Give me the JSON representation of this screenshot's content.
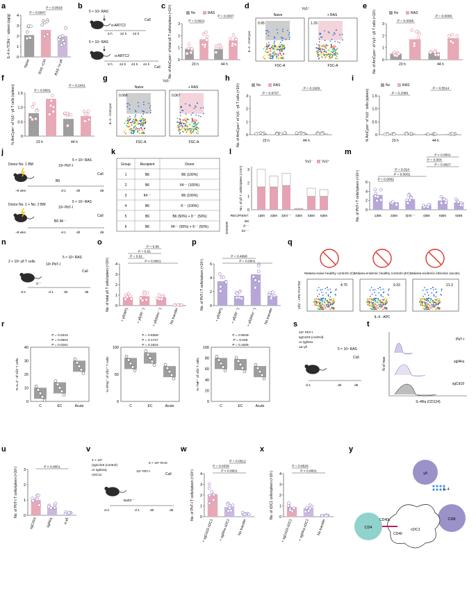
{
  "panels": {
    "a": {
      "label": "a",
      "ylabel": "IL-4 in TCRα⁻⁻ spleen (pg/g)",
      "yticks": [
        "0",
        "1",
        "2",
        "3",
        "4"
      ],
      "categories": [
        "Naive",
        "RAS +Ctrl",
        "RAS +α-γδ"
      ],
      "pvals": [
        "P = 0.0047",
        "P = 0.0018"
      ],
      "colors": [
        "#9e9e9e",
        "#e8a9b6",
        "#cbb9dd"
      ]
    },
    "b": {
      "label": "b",
      "ras": "5 × 10⁴ RAS",
      "artc": "α-ARTC2",
      "cull": "Cull",
      "times1": [
        "8 h",
        "22 h",
        "23 h"
      ],
      "times2": [
        "8 h",
        "24 h",
        "43 h",
        "44 h"
      ]
    },
    "c": {
      "label": "c",
      "ylabel": "No. of AmCyan⁺ of total γδ T cells/spleen (×10³)",
      "yticks": [
        "0",
        "1",
        "2",
        "3"
      ],
      "groups": [
        "23 h",
        "44 h"
      ],
      "pvals": [
        "P = 0.0021",
        "P = 0.0037"
      ],
      "legend": [
        "Nv",
        "RAS"
      ]
    },
    "d": {
      "label": "d",
      "title": "Vγ1⁺",
      "sub": [
        "Naive",
        "+ RAS"
      ],
      "gates": [
        "0.95",
        "1.29"
      ],
      "ylabel": "IL-4 - AmCyan",
      "xlabel": "FSC-A"
    },
    "e": {
      "label": "e",
      "ylabel": "No. of AmCyan⁺ of Vγ1⁺ γδ T cells (×10³)",
      "yticks": [
        "0",
        "1",
        "2",
        "3"
      ],
      "groups": [
        "23 h",
        "44 h"
      ],
      "pvals": [
        "P = 0.0006",
        "P = 0.0006"
      ],
      "legend": [
        "Nv",
        "RAS"
      ]
    },
    "f": {
      "label": "f",
      "ylabel": "% AmCyan⁺ of Vγ1⁺ γδ T cells (spleen)",
      "yticks": [
        "0",
        "0.5",
        "1.0",
        "1.5"
      ],
      "groups": [
        "23 h",
        "44 h"
      ],
      "pvals": [
        "P = 0.0001",
        "P = 0.2431"
      ]
    },
    "g": {
      "label": "g",
      "title": "Vγ1⁻",
      "sub": [
        "Naive",
        "+ RAS"
      ],
      "gates": [
        "0.066",
        "0.067"
      ],
      "ylabel": "IL-4 - AmCyan",
      "xlabel": "FSC-A"
    },
    "h": {
      "label": "h",
      "ylabel": "No. of AmCyan⁺ of Vγ1⁻ γδ T cells (×10³)",
      "yticks": [
        "0",
        "1",
        "2",
        "3"
      ],
      "groups": [
        "23 h",
        "44 h"
      ],
      "pvals": [
        "P = 0.9737",
        "P = 0.1929"
      ],
      "legend": [
        "Nv",
        "RAS"
      ]
    },
    "i": {
      "label": "i",
      "ylabel": "% AmCyan⁺ of Vγ1⁻ cells (spleen)",
      "yticks": [
        "0",
        "0.5",
        "1.0",
        "1.5"
      ],
      "groups": [
        "23 h",
        "44 h"
      ],
      "pvals": [
        "P = 0.2386",
        "P = 0.5514"
      ],
      "legend": [
        "Nv",
        "RAS"
      ]
    },
    "j": {
      "label": "j",
      "row1": [
        "Donor No. 1 BM",
        "B6",
        "10⁶ PbT-I",
        "5 × 10⁴ RAS",
        "Cull"
      ],
      "row2": [
        "Donor No. 1 + No. 2 BM",
        "B6 Il4⁻⁻",
        "10⁶ PbT-I",
        "5 × 10⁴ RAS",
        "Cull"
      ],
      "times": [
        "~8 wks",
        "d-1",
        "d0",
        "d6"
      ]
    },
    "k": {
      "label": "k",
      "headers": [
        "Group",
        "Recipient",
        "Donor"
      ],
      "rows": [
        [
          "1",
          "B6",
          "B6 (100%)"
        ],
        [
          "2",
          "B6",
          "Il4⁻⁻ (100%)"
        ],
        [
          "3",
          "Il4⁻⁻",
          "B6 (100%)"
        ],
        [
          "4",
          "B6",
          "δ⁻⁻ (100%)"
        ],
        [
          "5",
          "B6",
          "B6 (50%) + δ⁻⁻ (50%)"
        ],
        [
          "6",
          "B6",
          "Il4⁻⁻ (50%) + δ⁻⁻ (50%)"
        ]
      ]
    },
    "l": {
      "label": "l",
      "ylabel": "No. of γδ T cells/spleen (×10⁴)",
      "yticks": [
        "0",
        "1",
        "2",
        "3"
      ],
      "legend": [
        "Vγ1⁻",
        "Vγ1⁺"
      ],
      "recipients": [
        "1)B6",
        "2)B6",
        "3)Il4⁻⁻",
        "4)B6",
        "5)B6",
        "6)B6"
      ],
      "donor_rows": [
        "B6",
        "δ⁻⁻",
        "Il4⁻⁻"
      ],
      "recipient_label": "RECIPIENT:",
      "donor_label": "DONOR"
    },
    "m": {
      "label": "m",
      "ylabel": "No. of PbT-I T cells/spleen (×10⁴)",
      "yticks": [
        "0",
        "2",
        "4",
        "6"
      ],
      "pvals": [
        "P = 0.0002",
        "P = 0.0001",
        "P = 0.014",
        "P = 0.0027",
        "P = 0.004",
        "P < 0.0001"
      ],
      "recipients": [
        "1)B6",
        "2)B6",
        "3)Il4⁻⁻",
        "4)B6",
        "5)B6",
        "6)B6"
      ]
    },
    "n": {
      "label": "n",
      "items": [
        "2 × 10⁵ γδ T cells",
        "10⁶ PbT-I",
        "5 × 10⁴ RAS",
        "δ⁻⁻",
        "Cull"
      ],
      "times": [
        "d-2",
        "d-1",
        "d0",
        "d6"
      ]
    },
    "o": {
      "label": "o",
      "ylabel": "No. of total γδ T cells/spleen (×10³)",
      "yticks": [
        "0",
        "1",
        "2",
        "3",
        "4"
      ],
      "pvals": [
        "P < 0.0001",
        "P = 0.61",
        "P = 0.91",
        "P = 0.96"
      ],
      "categories": [
        "+ γδ(WT)",
        "+ γδ(Il4⁻⁻)",
        "+ γδ(Il4rα⁻⁻)",
        "No transfer"
      ]
    },
    "p": {
      "label": "p",
      "ylabel": "No. of PbT-I T cells/spleen (×10⁵)",
      "yticks": [
        "0",
        "2",
        "4",
        "6"
      ],
      "pvals": [
        "P = 0.0001",
        "P = 0.4698"
      ],
      "categories": [
        "+ γδ(WT)",
        "+ γδ(Il4⁻⁻)",
        "+ γδ(Il4rα⁻⁻)",
        "No transfer"
      ]
    },
    "q": {
      "label": "q",
      "groups": [
        "Malaria-naive healthy controls (C)",
        "Malaria-endemic healthy controls (EC)",
        "Malaria-endemic infection (acute)"
      ],
      "gates": [
        "4.75",
        "9.33",
        "21.3"
      ],
      "ylabel": "Vδ2 - APC-Fire750",
      "xlabel": "IL-4 - APC"
    },
    "r": {
      "label": "r",
      "plots": [
        {
          "ylabel": "% IL-4⁺ of Vδ2 T cells",
          "yticks": [
            "0",
            "10",
            "20",
            "30",
            "40"
          ],
          "pvals": [
            "P = 0.0181",
            "P = 0.0003",
            "P = 0.0243"
          ]
        },
        {
          "ylabel": "% IFNγ⁺ of Vδ2⁺ T cells",
          "yticks": [
            "0",
            "50",
            "100"
          ],
          "pvals": [
            "P = 0.1615",
            "P = 0.1747",
            "P = 0.6359"
          ]
        },
        {
          "ylabel": "% TNF⁺ of Vδ2 T cells",
          "yticks": [
            "0",
            "20",
            "40",
            "60",
            "80",
            "100"
          ],
          "pvals": [
            "P = 0.1636",
            "P = 0.048",
            "P = 0.9048"
          ]
        }
      ],
      "categories": [
        "C",
        "EC",
        "Acute"
      ]
    },
    "s": {
      "label": "s",
      "items": [
        "10⁶ PbT-I",
        "sgCd19 (control)",
        "or sgIl4ra",
        "±α-γδ",
        "5 × 10⁴ RAS",
        "Cull"
      ],
      "times": [
        "d-1",
        "d0",
        "d6"
      ]
    },
    "t": {
      "label": "t",
      "legend": [
        "PbT-I",
        "sgIl4ra",
        "sgCd19"
      ],
      "ylabel": "% of max",
      "xlabel": "IL-4Ra (CD124)"
    },
    "u": {
      "label": "u",
      "ylabel": "No. of PbT-I T cells/spleen (×10⁵)",
      "yticks": [
        "0",
        "1",
        "2",
        "3"
      ],
      "pvals": [
        "P < 0.0001"
      ],
      "categories": [
        "sgCd19",
        "sgIl4ra",
        "α-γδ"
      ]
    },
    "v": {
      "label": "v",
      "items": [
        "2 × 10⁵",
        "(sgCd19 (control)",
        "or sgIl4ra)",
        "cDC1s",
        "10⁶ PbT-I",
        "5 × 10⁴ RAS",
        "Batf3⁻⁻",
        "Cull"
      ],
      "times": [
        "d-3",
        "d-1",
        "d0",
        "d6"
      ]
    },
    "w": {
      "label": "w",
      "ylabel": "No. of PbT-I T cells/spleen (×10⁵)",
      "yticks": [
        "0",
        "1",
        "2",
        "3",
        "4"
      ],
      "pvals": [
        "P < 0.0001",
        "P = 0.0339",
        "P = 0.0512"
      ],
      "categories": [
        "+ sgCd19 cDC1",
        "+ sgIl4ra cDC1",
        "No transfer"
      ]
    },
    "x": {
      "label": "x",
      "ylabel": "No. of cDC1 cells/spleen (×10⁵)",
      "yticks": [
        "0",
        "1",
        "2",
        "3",
        "4"
      ],
      "pvals": [
        "P < 0.0001",
        "P = 0.8526"
      ],
      "categories": [
        "+ sgCd19 cDC1",
        "+ sgIl4ra cDC1",
        "No transfer"
      ]
    },
    "y": {
      "label": "y",
      "cells": [
        "γδ",
        "CD8",
        "CD4",
        "cDC1"
      ],
      "molecules": [
        "IL-4",
        "CD40L",
        "CD40"
      ]
    }
  },
  "colors": {
    "naive": "#9e9e9e",
    "ras": "#e8a9b6",
    "purple": "#b7a7d6",
    "pink": "#e5a3b3",
    "teal": "#8fd3cc",
    "cd8": "#9b92c9"
  }
}
